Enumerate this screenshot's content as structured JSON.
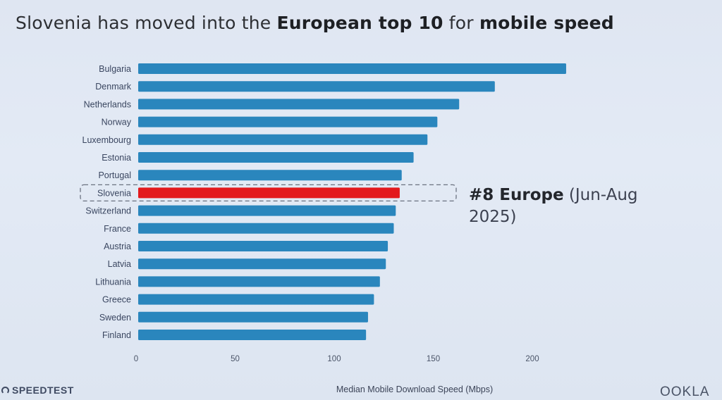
{
  "header": {
    "title_plain": "Slovenia has moved into the ",
    "title_bold_1": "European top 10",
    "title_mid": " for ",
    "title_bold_2": "mobile speed"
  },
  "annotation": {
    "rank_bold": "#8 Europe",
    "period": " (Jun-Aug 2025)"
  },
  "footer": {
    "left_logo": "SPEEDTEST",
    "right_logo": "OOKLA"
  },
  "colors": {
    "bar": "#2a86bd",
    "highlight": "#e3191d",
    "highlight_box": "#6b7280"
  },
  "chart_data": {
    "type": "bar",
    "orientation": "horizontal",
    "title": "Slovenia has moved into the European top 10 for mobile speed",
    "xlabel": "Median Mobile Download Speed (Mbps)",
    "ylabel": "",
    "xlim": [
      0,
      216
    ],
    "xticks": [
      0,
      50,
      100,
      150,
      200
    ],
    "grid": false,
    "highlight": "Slovenia",
    "categories": [
      "Bulgaria",
      "Denmark",
      "Netherlands",
      "Norway",
      "Luxembourg",
      "Estonia",
      "Portugal",
      "Slovenia",
      "Switzerland",
      "France",
      "Austria",
      "Latvia",
      "Lithuania",
      "Greece",
      "Sweden",
      "Finland"
    ],
    "values": [
      216,
      180,
      162,
      151,
      146,
      139,
      133,
      132,
      130,
      129,
      126,
      125,
      122,
      119,
      116,
      115
    ]
  }
}
